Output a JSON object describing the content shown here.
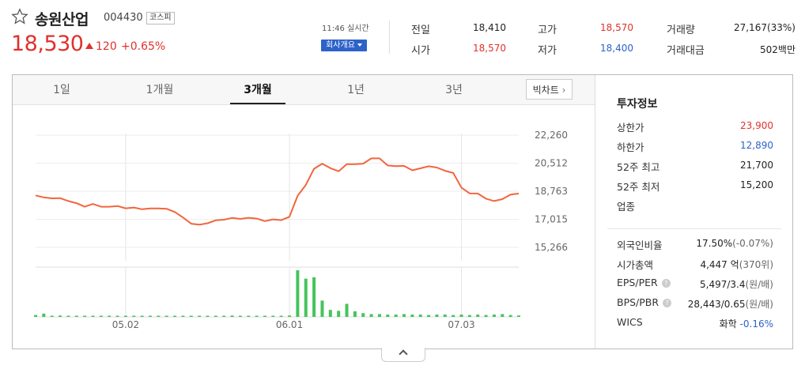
{
  "stock": {
    "name": "송원산업",
    "code": "004430",
    "market": "코스피",
    "price": "18,530",
    "change": "120",
    "change_pct": "+0.65%",
    "time": "11:46 실시간",
    "company_btn": "회사개요"
  },
  "quote": {
    "prev_close_label": "전일",
    "prev_close": "18,410",
    "open_label": "시가",
    "open": "18,570",
    "high_label": "고가",
    "high": "18,570",
    "low_label": "저가",
    "low": "18,400",
    "volume_label": "거래량",
    "volume": "27,167(33%)",
    "amount_label": "거래대금",
    "amount": "502백만"
  },
  "tabs": [
    {
      "label": "1일"
    },
    {
      "label": "1개월"
    },
    {
      "label": "3개월",
      "active": true
    },
    {
      "label": "1년"
    },
    {
      "label": "3년"
    }
  ],
  "big_chart_label": "빅차트",
  "chart_data": {
    "type": "line",
    "x_ticks": [
      "05.02",
      "06.01",
      "07.03"
    ],
    "y_ticks": [
      "22,260",
      "20,512",
      "18,763",
      "17,015",
      "15,266"
    ],
    "ylim": [
      15266,
      22260
    ],
    "price_series": [
      18500,
      18380,
      18320,
      18330,
      18150,
      18020,
      17800,
      17970,
      17800,
      17800,
      17840,
      17700,
      17750,
      17640,
      17690,
      17690,
      17670,
      17470,
      17130,
      16740,
      16680,
      16770,
      16950,
      16990,
      17100,
      17040,
      17110,
      17060,
      16900,
      17010,
      16960,
      17170,
      18480,
      19150,
      20160,
      20480,
      20200,
      20010,
      20450,
      20450,
      20480,
      20810,
      20810,
      20370,
      20330,
      20340,
      20070,
      20190,
      20320,
      20240,
      20040,
      19900,
      18990,
      18630,
      18620,
      18300,
      18150,
      18270,
      18550,
      18620
    ],
    "volume_series": [
      0.04,
      0.07,
      0.02,
      0.03,
      0.02,
      0.02,
      0.02,
      0.02,
      0.02,
      0.02,
      0.02,
      0.02,
      0.02,
      0.02,
      0.02,
      0.02,
      0.02,
      0.02,
      0.02,
      0.02,
      0.02,
      0.02,
      0.02,
      0.02,
      0.03,
      0.02,
      0.02,
      0.02,
      0.02,
      0.02,
      0.02,
      0.03,
      1.0,
      0.82,
      0.85,
      0.35,
      0.15,
      0.13,
      0.28,
      0.12,
      0.08,
      0.06,
      0.06,
      0.05,
      0.05,
      0.06,
      0.05,
      0.05,
      0.04,
      0.05,
      0.05,
      0.04,
      0.05,
      0.04,
      0.05,
      0.04,
      0.05,
      0.06,
      0.04,
      0.03
    ],
    "line_color": "#f2653d",
    "volume_color": "#45c45a"
  },
  "info": {
    "title": "투자정보",
    "upper_limit_label": "상한가",
    "upper_limit": "23,900",
    "lower_limit_label": "하한가",
    "lower_limit": "12,890",
    "w52_high_label": "52주 최고",
    "w52_high": "21,700",
    "w52_low_label": "52주 최저",
    "w52_low": "15,200",
    "sector_label": "업종",
    "foreign_label": "외국인비율",
    "foreign_value": "17.50%",
    "foreign_change": "(-0.07%)",
    "mktcap_label": "시가총액",
    "mktcap_value": "4,447",
    "mktcap_unit": "억",
    "mktcap_rank": "(370위)",
    "eps_label": "EPS/PER",
    "eps_value": "5,497/3.4",
    "eps_unit": "(원/배)",
    "bps_label": "BPS/PBR",
    "bps_value": "28,443/0.65",
    "bps_unit": "(원/배)",
    "wics_label": "WICS",
    "wics_sector": "화학",
    "wics_change": "-0.16%"
  },
  "colors": {
    "up": "#e0312d",
    "down": "#2d62c9",
    "accent": "#2d62c9"
  }
}
